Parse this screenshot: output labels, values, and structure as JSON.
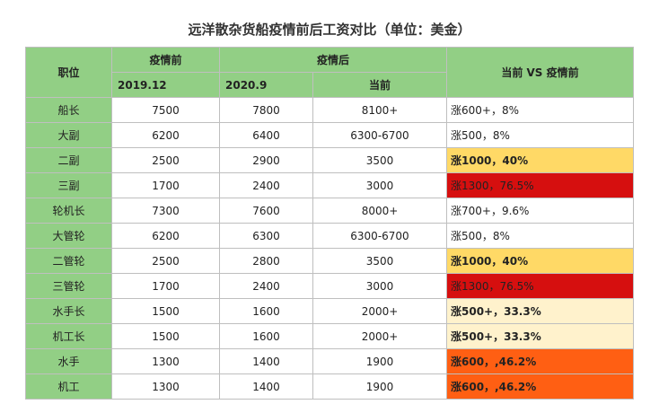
{
  "title": "远洋散杂货船疫情前后工资对比（单位：美金）",
  "headers": {
    "position": "职位",
    "pre": "疫情前",
    "post": "疫情后",
    "pre_date": "2019.12",
    "post_date": "2020.9",
    "current": "当前",
    "compare": "当前 VS 疫情前"
  },
  "colors": {
    "header_green": "#92cf85",
    "row_white": "#ffffff",
    "yellow": "#ffd966",
    "red": "#d60f0f",
    "light_yellow": "#fff2cc",
    "orange": "#ff5f13"
  },
  "rows": [
    {
      "position": "船长",
      "pre": "7500",
      "post": "7800",
      "current": "8100+",
      "compare": "涨600+，8%",
      "color": "#ffffff",
      "bold": false
    },
    {
      "position": "大副",
      "pre": "6200",
      "post": "6400",
      "current": "6300-6700",
      "compare": "涨500，8%",
      "color": "#ffffff",
      "bold": false
    },
    {
      "position": "二副",
      "pre": "2500",
      "post": "2900",
      "current": "3500",
      "compare": "涨1000，40%",
      "color": "#ffd966",
      "bold": true
    },
    {
      "position": "三副",
      "pre": "1700",
      "post": "2400",
      "current": "3000",
      "compare": "涨1300，76.5%",
      "color": "#d60f0f",
      "bold": false
    },
    {
      "position": "轮机长",
      "pre": "7300",
      "post": "7600",
      "current": "8000+",
      "compare": "涨700+，9.6%",
      "color": "#ffffff",
      "bold": false
    },
    {
      "position": "大管轮",
      "pre": "6200",
      "post": "6300",
      "current": "6300-6700",
      "compare": "涨500，8%",
      "color": "#ffffff",
      "bold": false
    },
    {
      "position": "二管轮",
      "pre": "2500",
      "post": "2800",
      "current": "3500",
      "compare": "涨1000，40%",
      "color": "#ffd966",
      "bold": true
    },
    {
      "position": "三管轮",
      "pre": "1700",
      "post": "2400",
      "current": "3000",
      "compare": "涨1300，76.5%",
      "color": "#d60f0f",
      "bold": false
    },
    {
      "position": "水手长",
      "pre": "1500",
      "post": "1600",
      "current": "2000+",
      "compare": "涨500+，33.3%",
      "color": "#fff2cc",
      "bold": true
    },
    {
      "position": "机工长",
      "pre": "1500",
      "post": "1600",
      "current": "2000+",
      "compare": "涨500+，33.3%",
      "color": "#fff2cc",
      "bold": true
    },
    {
      "position": "水手",
      "pre": "1300",
      "post": "1400",
      "current": "1900",
      "compare": "涨600，,46.2%",
      "color": "#ff5f13",
      "bold": true
    },
    {
      "position": "机工",
      "pre": "1300",
      "post": "1400",
      "current": "1900",
      "compare": "涨600，,46.2%",
      "color": "#ff5f13",
      "bold": true
    }
  ]
}
